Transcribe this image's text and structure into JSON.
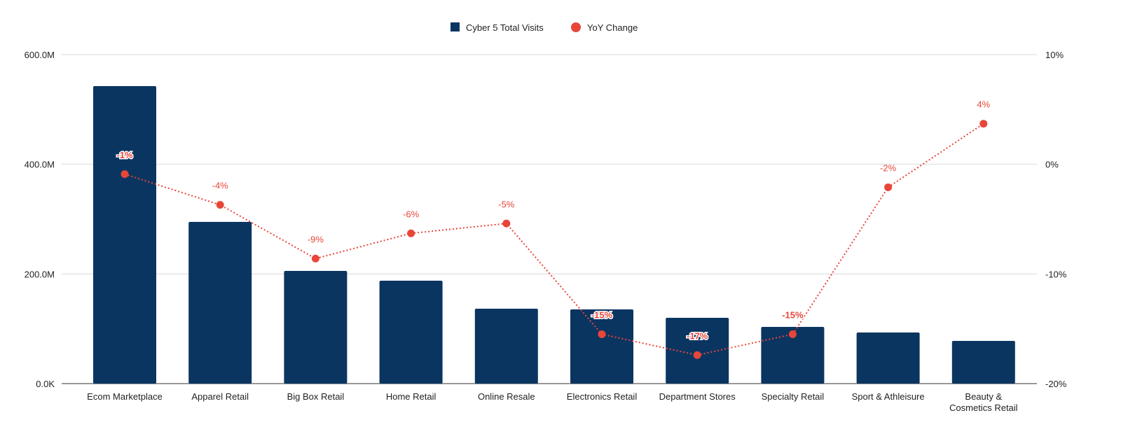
{
  "chart_data": {
    "type": "bar+line",
    "categories": [
      "Ecom Marketplace",
      "Apparel Retail",
      "Big Box Retail",
      "Home Retail",
      "Online Resale",
      "Electronics Retail",
      "Department Stores",
      "Specialty Retail",
      "Sport & Athleisure",
      "Beauty & Cosmetics Retail"
    ],
    "series": [
      {
        "name": "Cyber 5 Total Visits",
        "type": "bar",
        "axis": "left",
        "color": "#0b3561",
        "values": [
          542.6,
          294.9,
          205.5,
          187.7,
          136.6,
          135.3,
          120.0,
          103.4,
          93.2,
          77.9
        ]
      },
      {
        "name": "YoY Change",
        "type": "line",
        "style": "dotted",
        "axis": "right",
        "color": "#e8463a",
        "values": [
          -0.9,
          -3.7,
          -8.6,
          -6.3,
          -5.4,
          -15.5,
          -17.4,
          -15.5,
          -2.1,
          3.7
        ],
        "labels": [
          "-1%",
          "-4%",
          "-9%",
          "-6%",
          "-5%",
          "-15%",
          "-17%",
          "-15%",
          "-2%",
          "4%"
        ]
      }
    ],
    "y_left": {
      "range": [
        0,
        600
      ],
      "unit": "M",
      "ticks": [
        "0.0K",
        "200.0M",
        "400.0M",
        "600.0M"
      ]
    },
    "y_right": {
      "range": [
        -20,
        10
      ],
      "unit": "%",
      "ticks": [
        "-20%",
        "-10%",
        "0%",
        "10%"
      ]
    },
    "grid": true,
    "legend": "top"
  }
}
